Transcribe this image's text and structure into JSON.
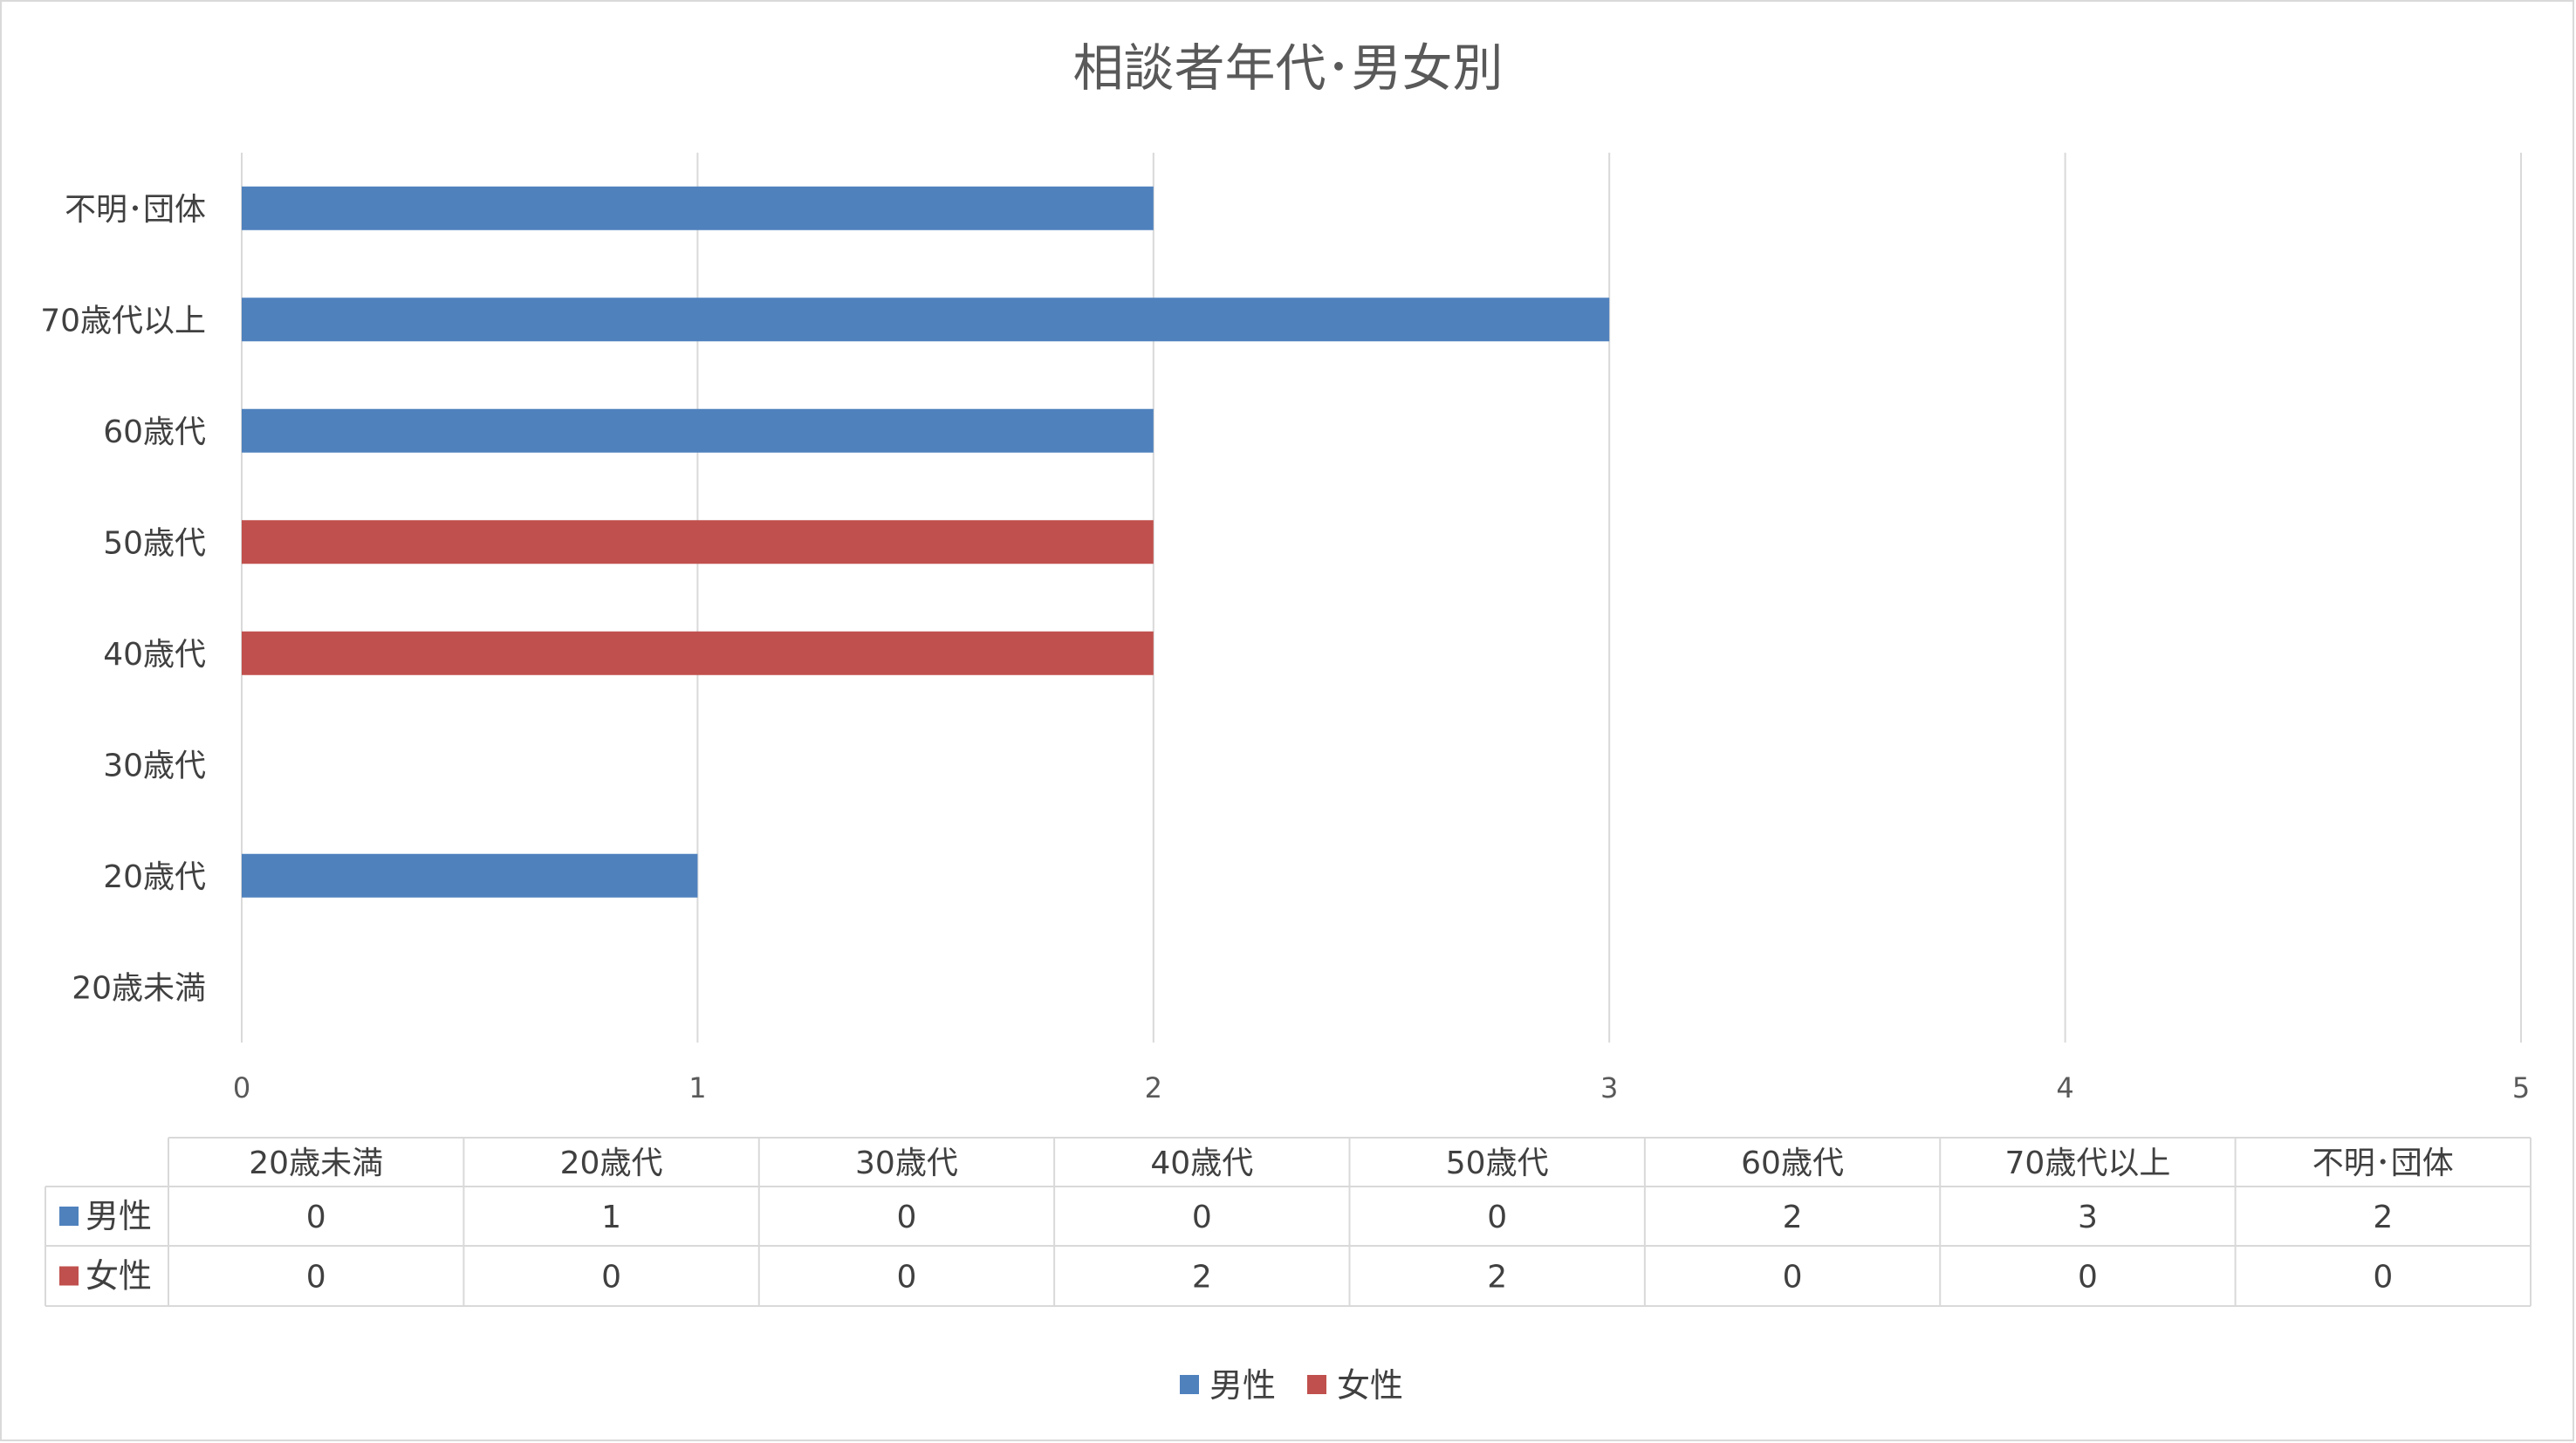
{
  "chart_data": {
    "type": "bar",
    "orientation": "horizontal",
    "title": "相談者年代･男女別",
    "categories": [
      "20歳未満",
      "20歳代",
      "30歳代",
      "40歳代",
      "50歳代",
      "60歳代",
      "70歳代以上",
      "不明･団体"
    ],
    "series": [
      {
        "name": "男性",
        "color": "#4F81BD",
        "values": [
          0,
          1,
          0,
          0,
          0,
          2,
          3,
          2
        ]
      },
      {
        "name": "女性",
        "color": "#C0504D",
        "values": [
          0,
          0,
          0,
          2,
          2,
          0,
          0,
          0
        ]
      }
    ],
    "xlim": [
      0,
      5
    ],
    "xticks": [
      "0",
      "1",
      "2",
      "3",
      "4",
      "5"
    ],
    "grid": true,
    "legend": "bottom",
    "data_table": true
  }
}
